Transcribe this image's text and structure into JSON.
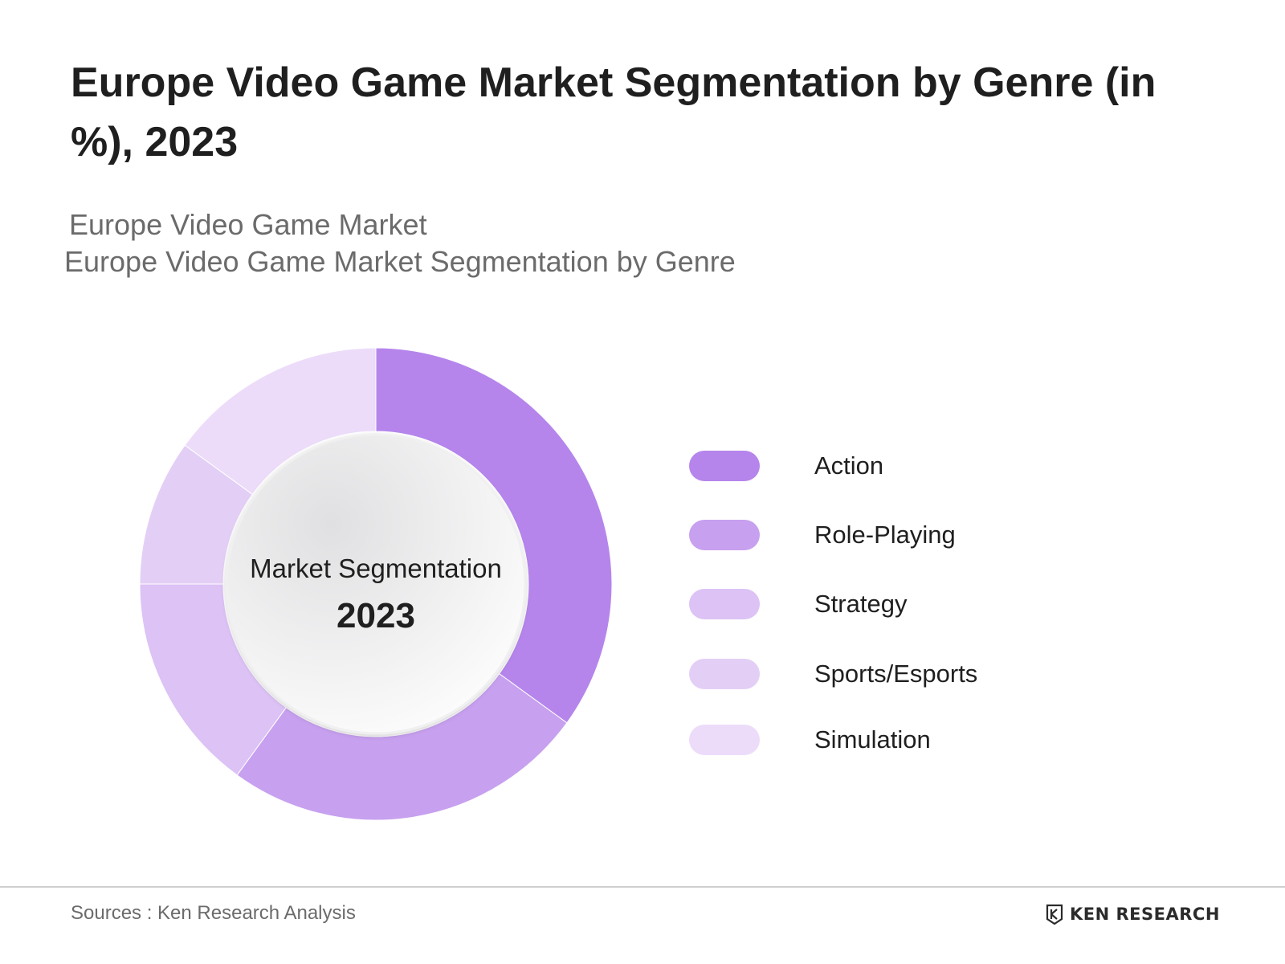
{
  "title": "Europe Video Game Market Segmentation by Genre (in %), 2023",
  "subtitle_line1": "Europe Video Game Market",
  "subtitle_line2": "Europe Video Game Market Segmentation by Genre",
  "chart_data": {
    "type": "pie",
    "variant": "donut",
    "categories": [
      "Action",
      "Role-Playing",
      "Strategy",
      "Sports/Esports",
      "Simulation"
    ],
    "values": [
      35,
      25,
      15,
      10,
      15
    ],
    "colors": [
      "#b585ec",
      "#c7a0ef",
      "#dcc2f5",
      "#e3cff6",
      "#ecdcfa"
    ],
    "center_label": "Market Segmentation",
    "center_year": "2023",
    "legend_position": "right"
  },
  "source": "Sources : Ken Research Analysis",
  "logo_text": "KEN RESEARCH",
  "logo_icon": "ken-research-logo-icon"
}
